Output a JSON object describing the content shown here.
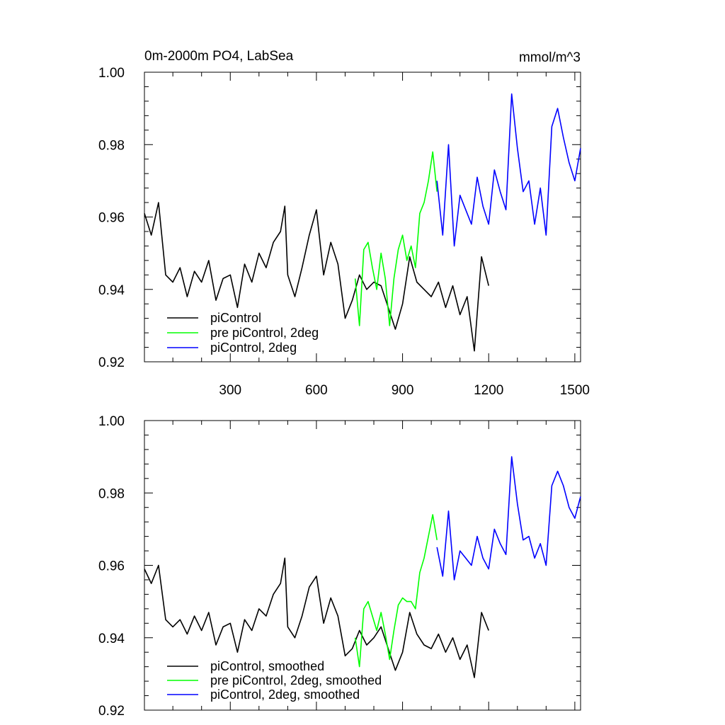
{
  "chart_data": [
    {
      "type": "line",
      "title": "0m-2000m PO4, LabSea",
      "units": "mmol/m^3",
      "xlim": [
        1,
        1520
      ],
      "ylim": [
        0.92,
        1.0
      ],
      "yticks": [
        "1.00",
        "0.98",
        "0.96",
        "0.94",
        "0.92"
      ],
      "xticks": [
        "300",
        "600",
        "900",
        "1200",
        "1500"
      ],
      "legend_position": "bottom-left",
      "series": [
        {
          "name": "piControl",
          "color": "#000000",
          "x": [
            1,
            25,
            50,
            75,
            100,
            125,
            150,
            175,
            200,
            225,
            250,
            275,
            300,
            325,
            350,
            375,
            400,
            425,
            450,
            475,
            490,
            500,
            525,
            550,
            575,
            600,
            625,
            650,
            675,
            700,
            725,
            750,
            775,
            800,
            825,
            850,
            875,
            900,
            925,
            950,
            975,
            1000,
            1025,
            1050,
            1075,
            1100,
            1125,
            1150,
            1175,
            1200
          ],
          "y": [
            0.961,
            0.955,
            0.964,
            0.944,
            0.942,
            0.946,
            0.938,
            0.945,
            0.942,
            0.948,
            0.937,
            0.943,
            0.944,
            0.935,
            0.947,
            0.942,
            0.95,
            0.946,
            0.953,
            0.956,
            0.963,
            0.944,
            0.938,
            0.946,
            0.955,
            0.962,
            0.944,
            0.953,
            0.947,
            0.932,
            0.937,
            0.944,
            0.94,
            0.942,
            0.941,
            0.935,
            0.929,
            0.936,
            0.949,
            0.942,
            0.94,
            0.938,
            0.942,
            0.935,
            0.941,
            0.933,
            0.938,
            0.923,
            0.949,
            0.941
          ]
        },
        {
          "name": "pre piControl, 2deg",
          "color": "#00ff00",
          "x": [
            735,
            750,
            765,
            780,
            795,
            810,
            825,
            840,
            855,
            870,
            885,
            900,
            915,
            930,
            945,
            960,
            975,
            990,
            1005,
            1020
          ],
          "y": [
            0.943,
            0.93,
            0.951,
            0.953,
            0.946,
            0.94,
            0.95,
            0.943,
            0.93,
            0.943,
            0.951,
            0.955,
            0.948,
            0.952,
            0.946,
            0.961,
            0.964,
            0.97,
            0.978,
            0.967
          ]
        },
        {
          "name": "piControl, 2deg",
          "color": "#0000ff",
          "x": [
            1020,
            1040,
            1060,
            1080,
            1100,
            1120,
            1140,
            1160,
            1180,
            1200,
            1220,
            1240,
            1260,
            1280,
            1300,
            1320,
            1340,
            1360,
            1380,
            1400,
            1420,
            1440,
            1460,
            1480,
            1500,
            1520
          ],
          "y": [
            0.97,
            0.955,
            0.98,
            0.952,
            0.966,
            0.962,
            0.958,
            0.971,
            0.963,
            0.958,
            0.973,
            0.967,
            0.962,
            0.994,
            0.979,
            0.967,
            0.97,
            0.958,
            0.968,
            0.955,
            0.985,
            0.99,
            0.982,
            0.975,
            0.97,
            0.979
          ]
        }
      ]
    },
    {
      "type": "line",
      "title": "",
      "units": "",
      "xlim": [
        1,
        1520
      ],
      "ylim": [
        0.92,
        1.0
      ],
      "yticks": [
        "1.00",
        "0.98",
        "0.96",
        "0.94",
        "0.92"
      ],
      "xticks": [],
      "legend_position": "bottom-left",
      "series": [
        {
          "name": "piControl, smoothed",
          "color": "#000000",
          "x": [
            1,
            25,
            50,
            75,
            100,
            125,
            150,
            175,
            200,
            225,
            250,
            275,
            300,
            325,
            350,
            375,
            400,
            425,
            450,
            475,
            490,
            500,
            525,
            550,
            575,
            600,
            625,
            650,
            675,
            700,
            725,
            750,
            775,
            800,
            825,
            850,
            875,
            900,
            925,
            950,
            975,
            1000,
            1025,
            1050,
            1075,
            1100,
            1125,
            1150,
            1175,
            1200
          ],
          "y": [
            0.959,
            0.955,
            0.96,
            0.945,
            0.943,
            0.945,
            0.941,
            0.946,
            0.942,
            0.947,
            0.938,
            0.943,
            0.944,
            0.936,
            0.945,
            0.942,
            0.948,
            0.946,
            0.952,
            0.955,
            0.962,
            0.943,
            0.94,
            0.946,
            0.954,
            0.957,
            0.944,
            0.951,
            0.946,
            0.935,
            0.937,
            0.942,
            0.938,
            0.94,
            0.943,
            0.937,
            0.931,
            0.936,
            0.947,
            0.941,
            0.938,
            0.937,
            0.941,
            0.936,
            0.94,
            0.934,
            0.938,
            0.929,
            0.947,
            0.942
          ]
        },
        {
          "name": "pre piControl, 2deg, smoothed",
          "color": "#00ff00",
          "x": [
            735,
            750,
            765,
            780,
            795,
            810,
            825,
            840,
            855,
            870,
            885,
            900,
            915,
            930,
            945,
            960,
            975,
            990,
            1005,
            1020
          ],
          "y": [
            0.94,
            0.932,
            0.948,
            0.95,
            0.946,
            0.942,
            0.947,
            0.941,
            0.934,
            0.942,
            0.949,
            0.951,
            0.95,
            0.95,
            0.948,
            0.958,
            0.962,
            0.968,
            0.974,
            0.967
          ]
        },
        {
          "name": "piControl, 2deg, smoothed",
          "color": "#0000ff",
          "x": [
            1020,
            1040,
            1060,
            1080,
            1100,
            1120,
            1140,
            1160,
            1180,
            1200,
            1220,
            1240,
            1260,
            1280,
            1300,
            1320,
            1340,
            1360,
            1380,
            1400,
            1420,
            1440,
            1460,
            1480,
            1500,
            1520
          ],
          "y": [
            0.965,
            0.957,
            0.975,
            0.956,
            0.964,
            0.962,
            0.96,
            0.968,
            0.962,
            0.959,
            0.97,
            0.966,
            0.963,
            0.99,
            0.977,
            0.967,
            0.968,
            0.962,
            0.966,
            0.96,
            0.982,
            0.986,
            0.982,
            0.976,
            0.973,
            0.979
          ]
        }
      ]
    }
  ]
}
